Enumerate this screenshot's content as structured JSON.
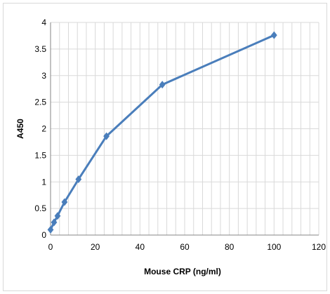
{
  "chart_data": {
    "type": "line",
    "title": "",
    "xlabel": "Mouse CRP (ng/ml)",
    "ylabel": "A450",
    "xlim": [
      0,
      120
    ],
    "ylim": [
      0,
      4
    ],
    "x_ticks": [
      0,
      20,
      40,
      60,
      80,
      100,
      120
    ],
    "y_ticks": [
      0,
      0.5,
      1,
      1.5,
      2,
      2.5,
      3,
      3.5,
      4
    ],
    "x_tick_labels": [
      "0",
      "20",
      "40",
      "60",
      "80",
      "100",
      "120"
    ],
    "y_tick_labels": [
      "0",
      "0.5",
      "1",
      "1.5",
      "2",
      "2.5",
      "3",
      "3.5",
      "4"
    ],
    "x_minor_step": 4,
    "grid": true,
    "legend": "none",
    "marker": "diamond",
    "line_color": "#4a7ebb",
    "marker_color": "#4a7ebb",
    "grid_color": "#d9d9d9",
    "series": [
      {
        "x": [
          0,
          1.5625,
          3.125,
          6.25,
          12.5,
          25,
          50,
          100
        ],
        "y": [
          0.1,
          0.24,
          0.36,
          0.62,
          1.05,
          1.86,
          2.83,
          3.76
        ]
      }
    ]
  }
}
